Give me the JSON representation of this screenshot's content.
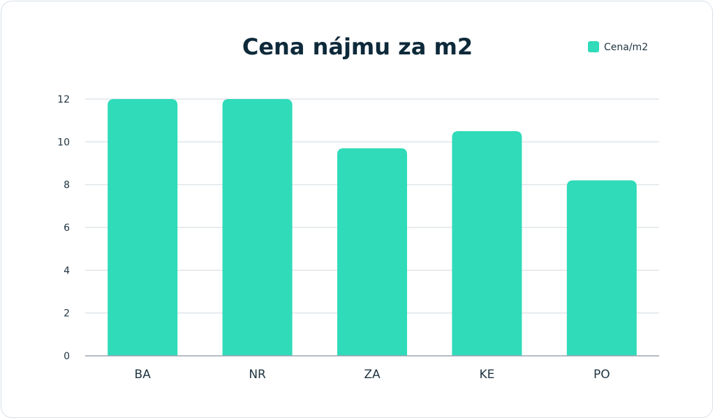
{
  "chart_data": {
    "type": "bar",
    "title": "Cena nájmu za m2",
    "categories": [
      "BA",
      "NR",
      "ZA",
      "KE",
      "PO"
    ],
    "series": [
      {
        "name": "Cena/m2",
        "values": [
          12,
          12,
          9.7,
          10.5,
          8.2
        ],
        "color": "#2fdbb9"
      }
    ],
    "ylim": [
      0,
      12
    ],
    "yticks": [
      0,
      2,
      4,
      6,
      8,
      10,
      12
    ],
    "grid": true,
    "legend": "top-right",
    "colors": {
      "bar": "#2fdbb9",
      "grid": "#dfe5ea",
      "axis": "#9aa6b2",
      "text": "#1f3340",
      "title": "#0e2a3a"
    }
  }
}
